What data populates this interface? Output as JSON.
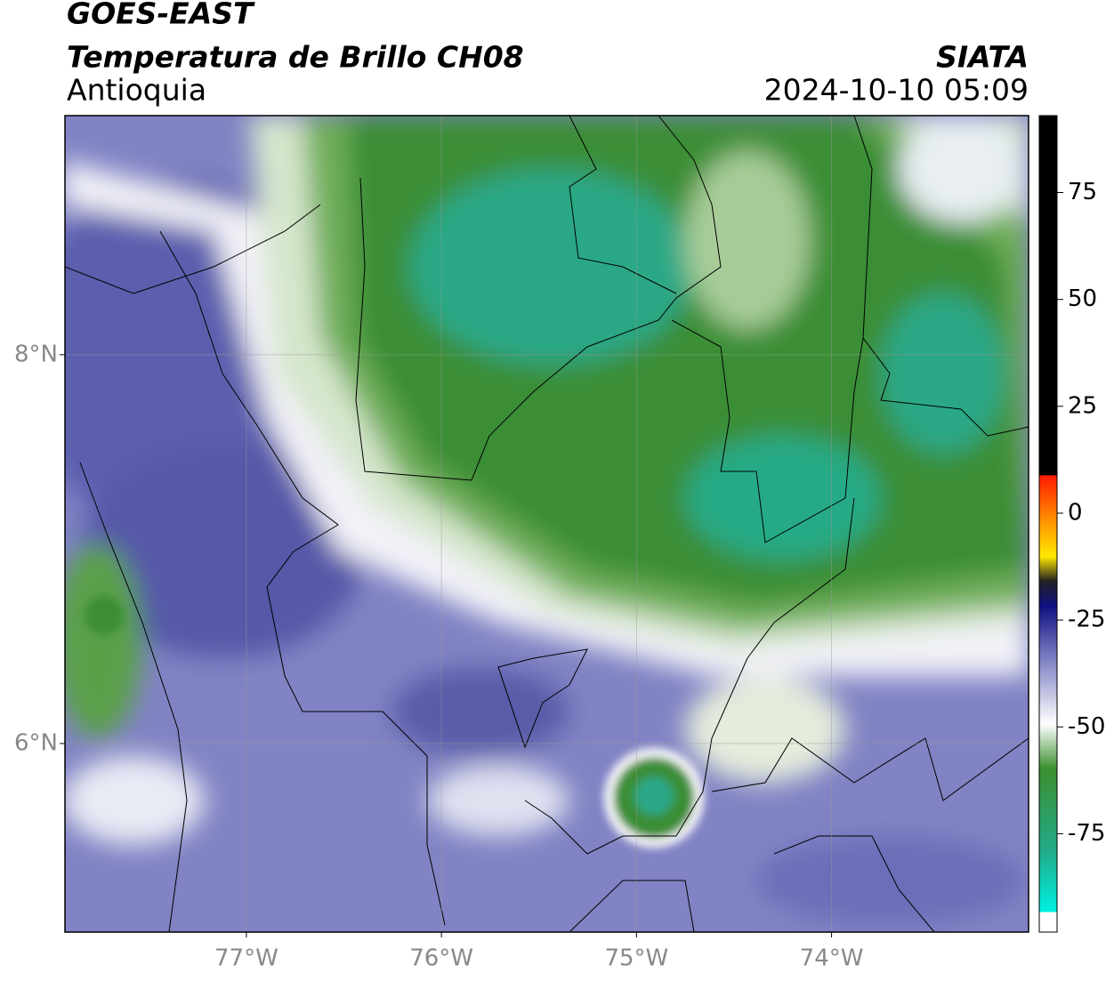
{
  "header": {
    "title": "GOES-EAST",
    "subtitle": "Temperatura de Brillo CH08",
    "region": "Antioquia",
    "source": "SIATA",
    "timestamp": "2024-10-10 05:09"
  },
  "map": {
    "xlim": [
      -77.93,
      -72.99
    ],
    "ylim": [
      5.03,
      9.23
    ],
    "xticks": [
      {
        "value": -77,
        "label": "77°W"
      },
      {
        "value": -76,
        "label": "76°W"
      },
      {
        "value": -75,
        "label": "75°W"
      },
      {
        "value": -74,
        "label": "74°W"
      }
    ],
    "yticks": [
      {
        "value": 8,
        "label": "8°N"
      },
      {
        "value": 6,
        "label": "6°N"
      }
    ],
    "grid": true
  },
  "colorbar": {
    "lim": [
      -98,
      93
    ],
    "ticks": [
      75,
      50,
      25,
      0,
      -25,
      -50,
      -75
    ]
  }
}
